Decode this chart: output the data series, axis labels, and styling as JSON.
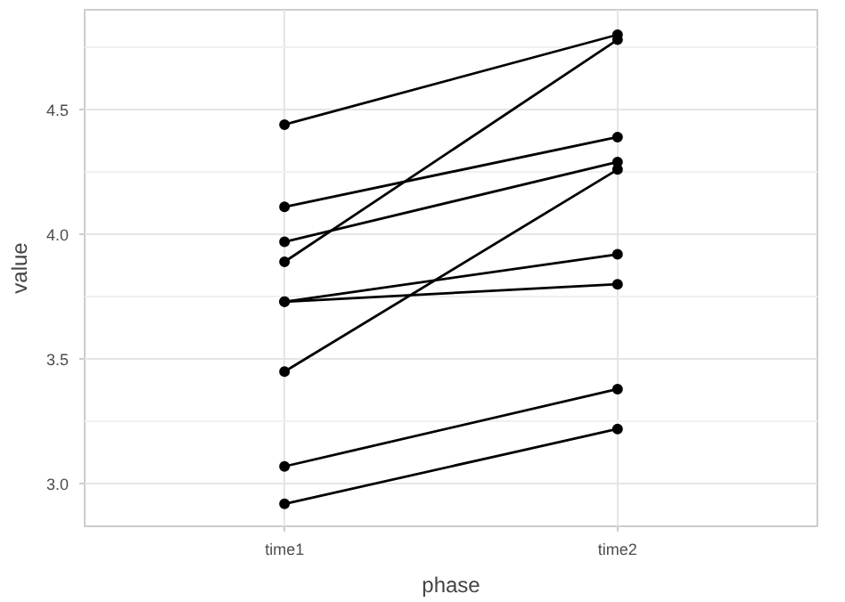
{
  "chart_data": {
    "type": "line",
    "xlabel": "phase",
    "ylabel": "value",
    "categories": [
      "time1",
      "time2"
    ],
    "series": [
      {
        "color": "#000000",
        "values": [
          4.44,
          4.8
        ]
      },
      {
        "color": "#000000",
        "values": [
          3.89,
          4.78
        ]
      },
      {
        "color": "#000000",
        "values": [
          4.11,
          4.39
        ]
      },
      {
        "color": "#000000",
        "values": [
          3.97,
          4.29
        ]
      },
      {
        "color": "#000000",
        "values": [
          3.45,
          4.26
        ]
      },
      {
        "color": "#000000",
        "values": [
          3.73,
          3.92
        ]
      },
      {
        "color": "#000000",
        "values": [
          3.73,
          3.8
        ]
      },
      {
        "color": "#000000",
        "values": [
          3.07,
          3.38
        ]
      },
      {
        "color": "#000000",
        "values": [
          2.92,
          3.22
        ]
      }
    ],
    "ylim": [
      2.83,
      4.9
    ],
    "yticks": [
      {
        "value": 3,
        "label": "3.0"
      },
      3.5,
      {
        "value": 4,
        "label": "4.0"
      },
      4.5
    ],
    "grid": true,
    "marker": "circle",
    "line_style": "solid"
  }
}
